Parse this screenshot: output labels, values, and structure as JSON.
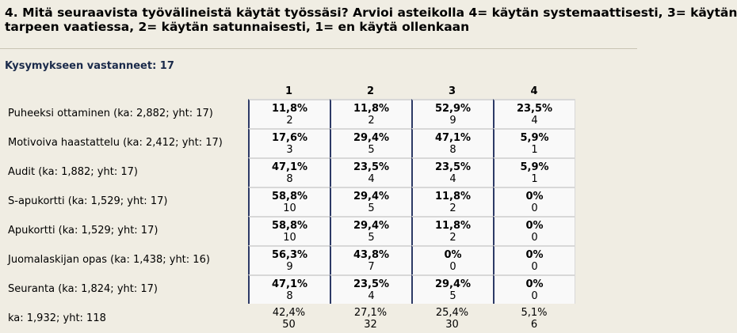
{
  "question": {
    "line1": "4. Mitä seuraavista työvälineistä käytät työssäsi? Arvioi asteikolla 4= käytän systemaattisesti, 3= käytän",
    "line2": "tarpeen vaatiessa, 2= käytän satunnaisesti, 1= en käytä ollenkaan"
  },
  "respondents_label": "Kysymykseen vastanneet: 17",
  "columns": [
    "1",
    "2",
    "3",
    "4"
  ],
  "rows": [
    {
      "label": "Puheeksi ottaminen (ka: 2,882; yht: 17)",
      "cells": [
        {
          "pct": "11,8%",
          "n": "2"
        },
        {
          "pct": "11,8%",
          "n": "2"
        },
        {
          "pct": "52,9%",
          "n": "9"
        },
        {
          "pct": "23,5%",
          "n": "4"
        }
      ]
    },
    {
      "label": "Motivoiva haastattelu (ka: 2,412; yht: 17)",
      "cells": [
        {
          "pct": "17,6%",
          "n": "3"
        },
        {
          "pct": "29,4%",
          "n": "5"
        },
        {
          "pct": "47,1%",
          "n": "8"
        },
        {
          "pct": "5,9%",
          "n": "1"
        }
      ]
    },
    {
      "label": "Audit (ka: 1,882; yht: 17)",
      "cells": [
        {
          "pct": "47,1%",
          "n": "8"
        },
        {
          "pct": "23,5%",
          "n": "4"
        },
        {
          "pct": "23,5%",
          "n": "4"
        },
        {
          "pct": "5,9%",
          "n": "1"
        }
      ]
    },
    {
      "label": "S-apukortti (ka: 1,529; yht: 17)",
      "cells": [
        {
          "pct": "58,8%",
          "n": "10"
        },
        {
          "pct": "29,4%",
          "n": "5"
        },
        {
          "pct": "11,8%",
          "n": "2"
        },
        {
          "pct": "0%",
          "n": "0"
        }
      ]
    },
    {
      "label": "Apukortti (ka: 1,529; yht: 17)",
      "cells": [
        {
          "pct": "58,8%",
          "n": "10"
        },
        {
          "pct": "29,4%",
          "n": "5"
        },
        {
          "pct": "11,8%",
          "n": "2"
        },
        {
          "pct": "0%",
          "n": "0"
        }
      ]
    },
    {
      "label": "Juomalaskijan opas (ka: 1,438; yht: 16)",
      "cells": [
        {
          "pct": "56,3%",
          "n": "9"
        },
        {
          "pct": "43,8%",
          "n": "7"
        },
        {
          "pct": "0%",
          "n": "0"
        },
        {
          "pct": "0%",
          "n": "0"
        }
      ]
    },
    {
      "label": "Seuranta (ka: 1,824; yht: 17)",
      "cells": [
        {
          "pct": "47,1%",
          "n": "8"
        },
        {
          "pct": "23,5%",
          "n": "4"
        },
        {
          "pct": "29,4%",
          "n": "5"
        },
        {
          "pct": "0%",
          "n": "0"
        }
      ]
    }
  ],
  "total": {
    "label": "ka: 1,932; yht: 118",
    "cells": [
      {
        "pct": "42,4%",
        "n": "50"
      },
      {
        "pct": "27,1%",
        "n": "32"
      },
      {
        "pct": "25,4%",
        "n": "30"
      },
      {
        "pct": "5,1%",
        "n": "6"
      }
    ]
  },
  "colors": {
    "background": "#f0ede3",
    "cell_bg": "#f9f9f9",
    "accent": "#2d3a66"
  }
}
